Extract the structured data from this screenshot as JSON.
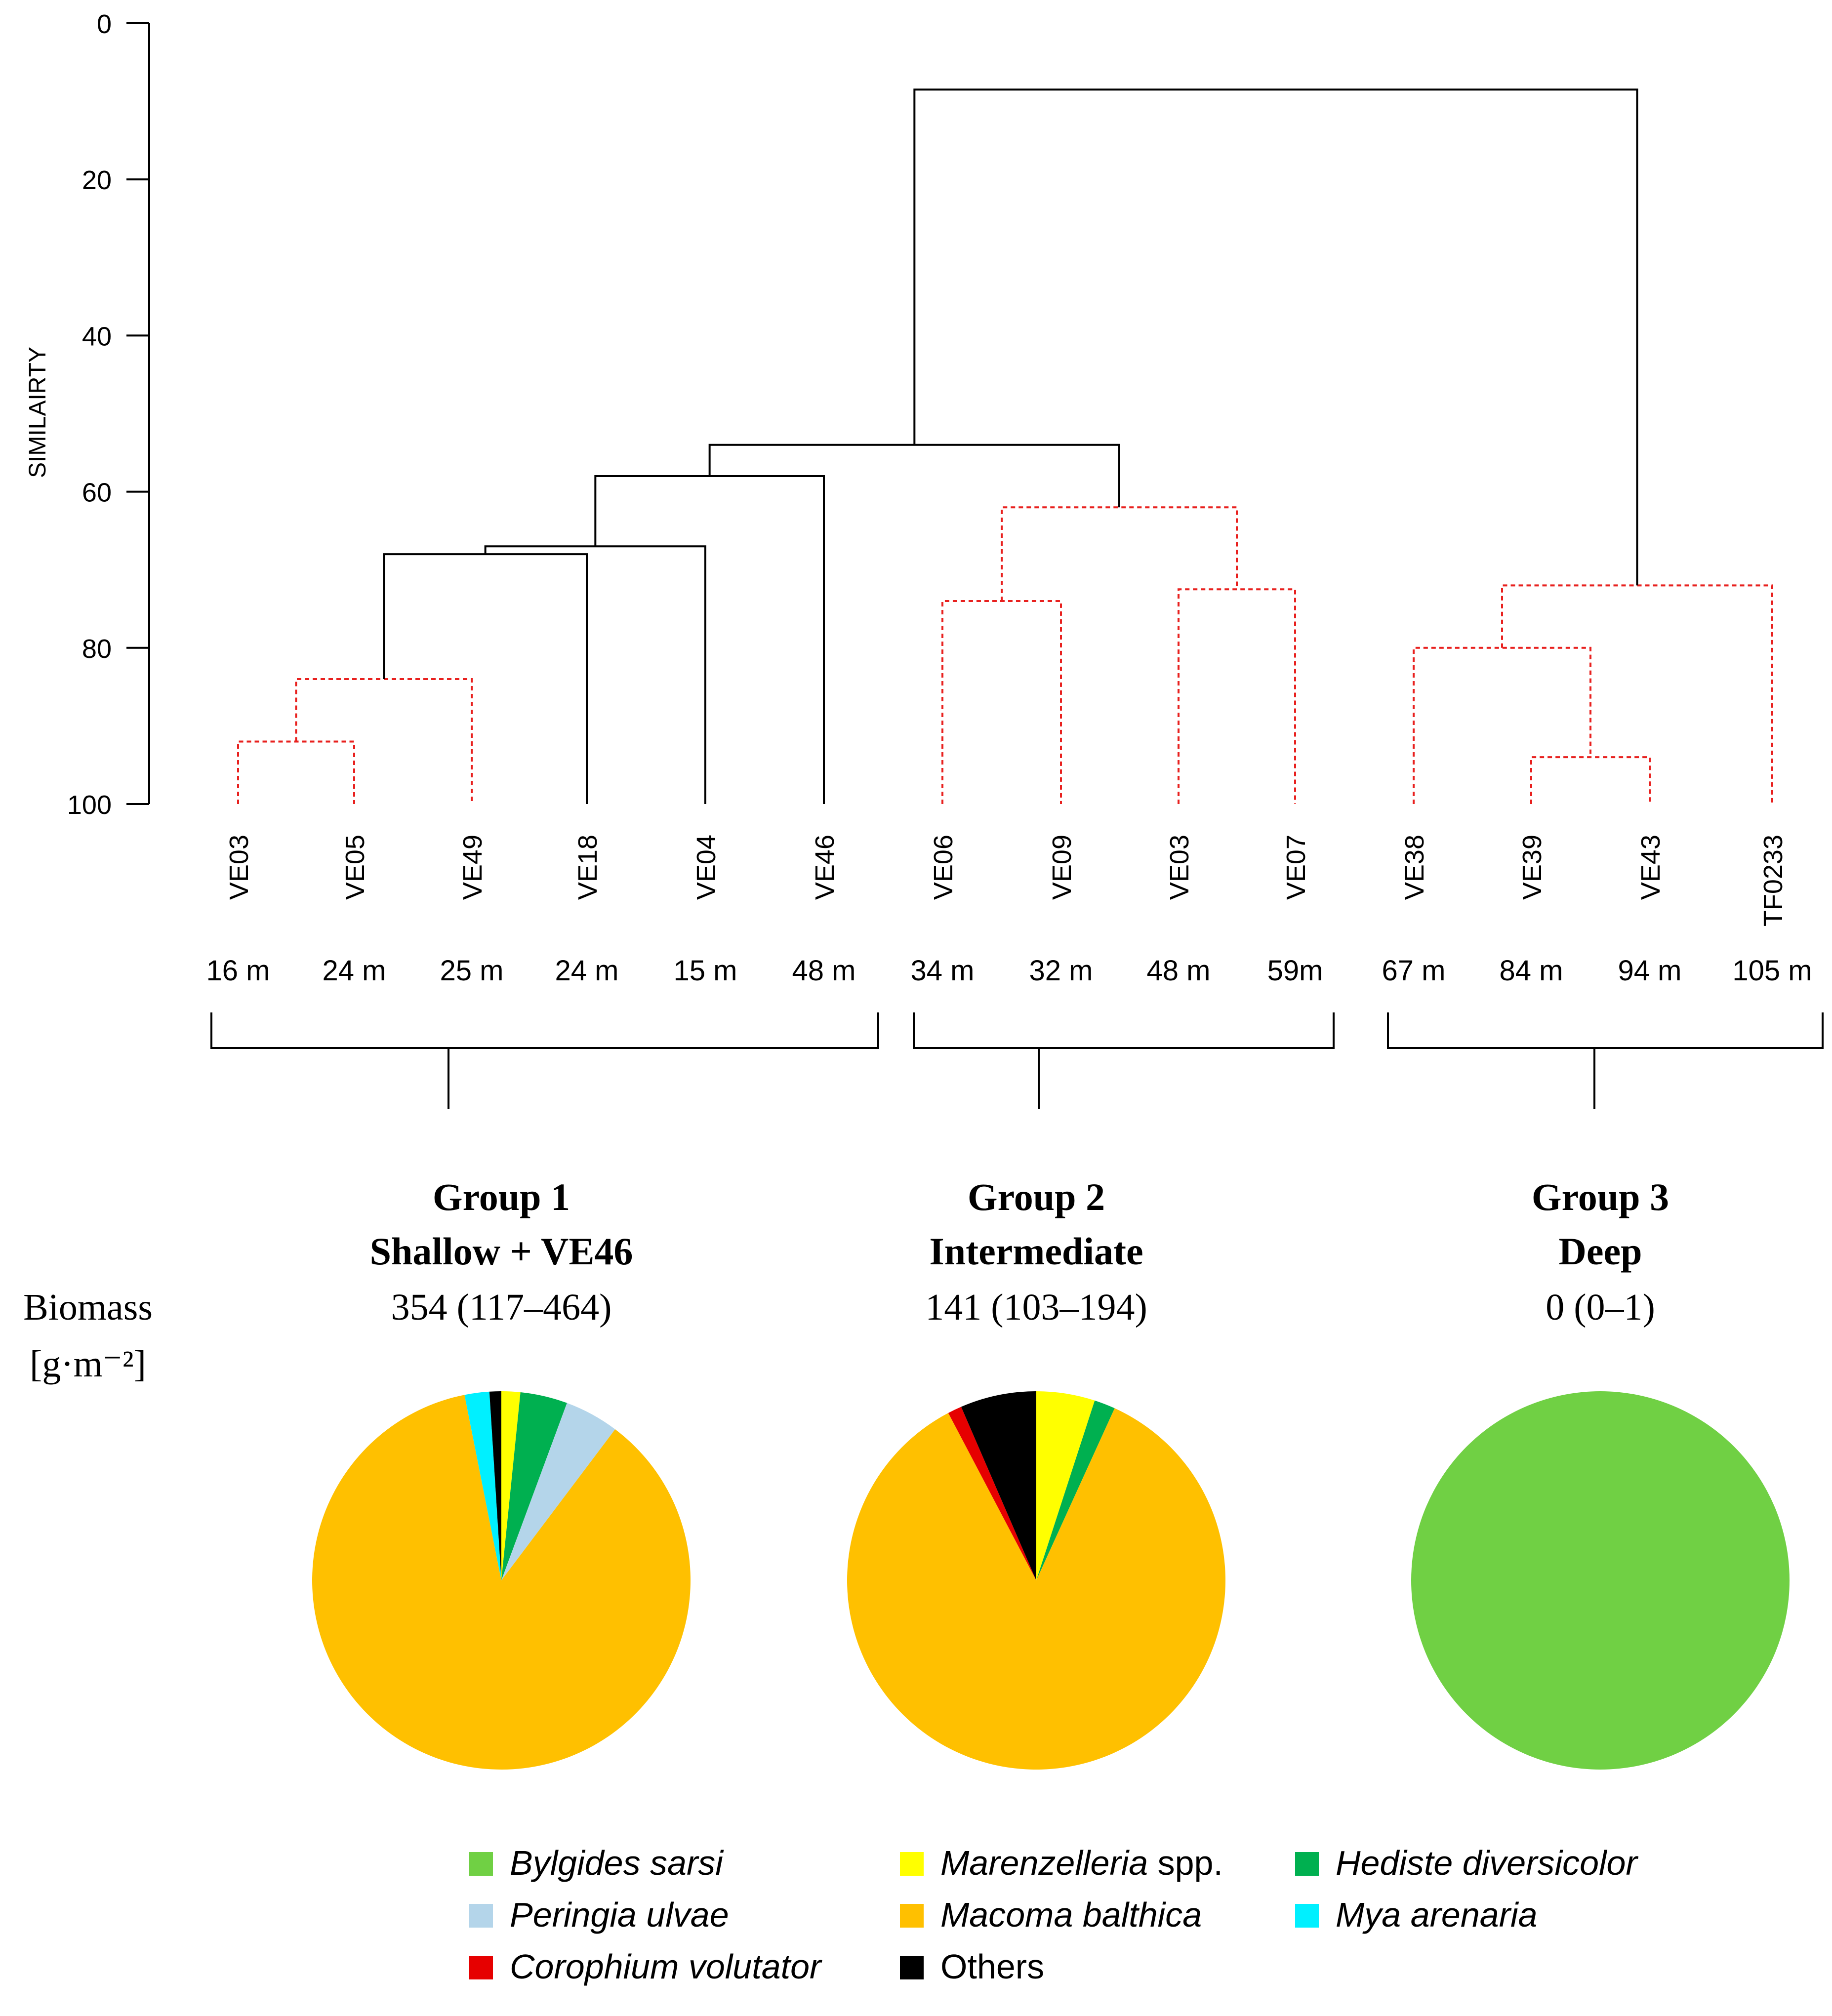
{
  "chart_data": [
    {
      "type": "dendrogram",
      "ylabel": "SIMILAIRTY",
      "ylim": [
        0,
        100
      ],
      "y_ticks": [
        "0",
        "20",
        "40",
        "60",
        "80",
        "100"
      ],
      "samples": [
        {
          "id": "VE03",
          "depth": "16 m"
        },
        {
          "id": "VE05",
          "depth": "24 m"
        },
        {
          "id": "VE49",
          "depth": "25 m"
        },
        {
          "id": "VE18",
          "depth": "24 m"
        },
        {
          "id": "VE04",
          "depth": "15 m"
        },
        {
          "id": "VE46",
          "depth": "48 m"
        },
        {
          "id": "VE06",
          "depth": "34 m"
        },
        {
          "id": "VE09",
          "depth": "32 m"
        },
        {
          "id": "VE03",
          "depth": "48 m"
        },
        {
          "id": "VE07",
          "depth": "59m"
        },
        {
          "id": "VE38",
          "depth": "67 m"
        },
        {
          "id": "VE39",
          "depth": "84 m"
        },
        {
          "id": "VE43",
          "depth": "94 m"
        },
        {
          "id": "TF0233",
          "depth": "105 m"
        }
      ],
      "merges": [
        {
          "id": "m1",
          "children": [
            "L0",
            "L1"
          ],
          "similarity": 92,
          "significant": true
        },
        {
          "id": "m2",
          "children": [
            "m1",
            "L2"
          ],
          "similarity": 84,
          "significant": true
        },
        {
          "id": "m3",
          "children": [
            "m2",
            "L3"
          ],
          "similarity": 68,
          "significant": false
        },
        {
          "id": "m4",
          "children": [
            "m3",
            "L4"
          ],
          "similarity": 67,
          "significant": false
        },
        {
          "id": "m5",
          "children": [
            "m4",
            "L5"
          ],
          "similarity": 58,
          "significant": false
        },
        {
          "id": "m6",
          "children": [
            "L6",
            "L7"
          ],
          "similarity": 74,
          "significant": true
        },
        {
          "id": "m7",
          "children": [
            "L8",
            "L9"
          ],
          "similarity": 72.5,
          "significant": true
        },
        {
          "id": "m8",
          "children": [
            "m6",
            "m7"
          ],
          "similarity": 62,
          "significant": true
        },
        {
          "id": "m9",
          "children": [
            "m5",
            "m8"
          ],
          "similarity": 54,
          "significant": false
        },
        {
          "id": "m10",
          "children": [
            "L11",
            "L12"
          ],
          "similarity": 94,
          "significant": true
        },
        {
          "id": "m11",
          "children": [
            "L10",
            "m10"
          ],
          "similarity": 80,
          "significant": true
        },
        {
          "id": "m12",
          "children": [
            "m11",
            "L13"
          ],
          "similarity": 72,
          "significant": true
        },
        {
          "id": "m13",
          "children": [
            "m9",
            "m12"
          ],
          "similarity": 8.5,
          "significant": false
        }
      ]
    },
    {
      "type": "pie",
      "title": "Group 1",
      "subtitle": "Shallow + VE46",
      "biomass": "354 (117–464)",
      "slices": [
        {
          "label": "Marenzelleria spp.",
          "value": 1.6
        },
        {
          "label": "Hediste diversicolor",
          "value": 4.0
        },
        {
          "label": "Peringia ulvae",
          "value": 4.6
        },
        {
          "label": "Macoma balthica",
          "value": 86.0
        },
        {
          "label": "Mya arenaria",
          "value": 2.1
        },
        {
          "label": "Others",
          "value": 1.0
        }
      ]
    },
    {
      "type": "pie",
      "title": "Group 2",
      "subtitle": "Intermediate",
      "biomass": "141 (103–194)",
      "slices": [
        {
          "label": "Marenzelleria spp.",
          "value": 5.0
        },
        {
          "label": "Hediste diversicolor",
          "value": 1.8
        },
        {
          "label": "Macoma balthica",
          "value": 85.5
        },
        {
          "label": "Corophium volutator",
          "value": 1.2
        },
        {
          "label": "Others",
          "value": 6.5
        }
      ]
    },
    {
      "type": "pie",
      "title": "Group 3",
      "subtitle": "Deep",
      "biomass": "0 (0–1)",
      "slices": [
        {
          "label": "Bylgides sarsi",
          "value": 100
        }
      ]
    }
  ],
  "biomass_label": [
    "Biomass",
    "[g·m⁻²]"
  ],
  "legend": [
    {
      "label": "Bylgides sarsi",
      "italic": true
    },
    {
      "label": "Peringia ulvae",
      "italic": true
    },
    {
      "label": "Corophium volutator",
      "italic": true
    },
    {
      "label": "Marenzelleria",
      "suffix": " spp.",
      "italic": true
    },
    {
      "label": "Macoma balthica",
      "italic": true
    },
    {
      "label": "Others",
      "italic": false
    },
    {
      "label": "Hediste diversicolor",
      "italic": true
    },
    {
      "label": "Mya arenaria",
      "italic": true
    }
  ],
  "colors": {
    "Bylgides sarsi": "#70d044",
    "Peringia ulvae": "#b4d5ea",
    "Corophium volutator": "#e60000",
    "Marenzelleria spp.": "#ffff00",
    "Macoma balthica": "#ffc000",
    "Others": "#000000",
    "Hediste diversicolor": "#00b050",
    "Mya arenaria": "#00f0ff",
    "significant_branch": "#e8201e",
    "branch": "#000000"
  }
}
